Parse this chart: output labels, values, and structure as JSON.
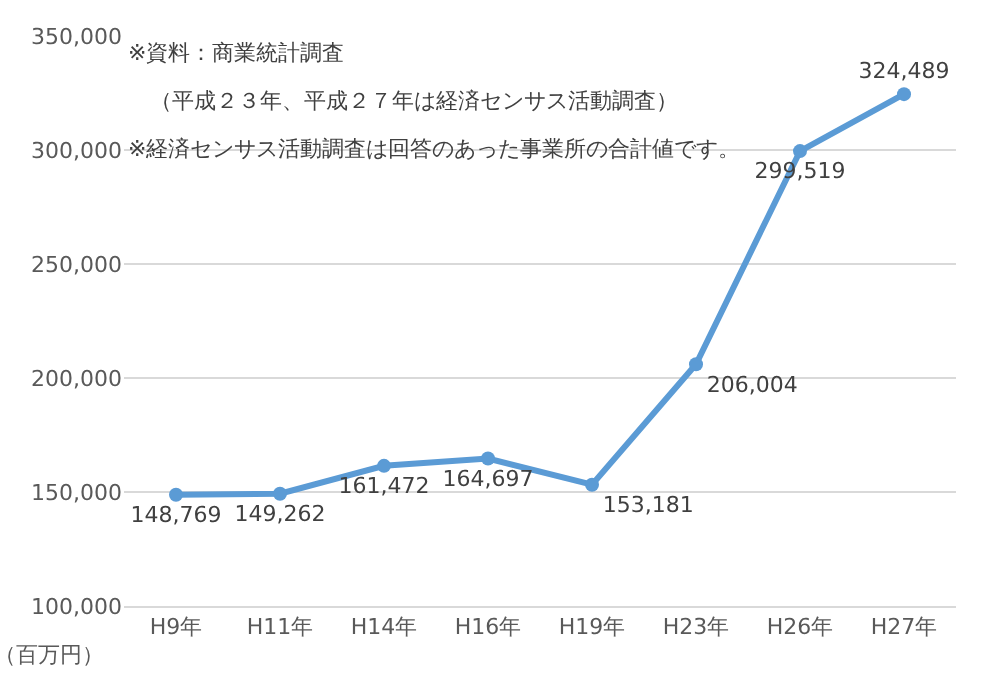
{
  "chart_data": {
    "type": "line",
    "categories": [
      "H9年",
      "H11年",
      "H14年",
      "H16年",
      "H19年",
      "H23年",
      "H26年",
      "H27年"
    ],
    "series": [
      {
        "color": "#5b9bd5",
        "values": [
          148769,
          149262,
          161472,
          164697,
          153181,
          206004,
          299519,
          324489
        ],
        "value_labels": [
          "148,769",
          "149,262",
          "161,472",
          "164,697",
          "153,181",
          "206,004",
          "299,519",
          "324,489"
        ]
      }
    ],
    "ylim": [
      100000,
      350000
    ],
    "yticks": [
      {
        "value": 100000,
        "label": "100,000"
      },
      {
        "value": 150000,
        "label": "150,000"
      },
      {
        "value": 200000,
        "label": "200,000"
      },
      {
        "value": 250000,
        "label": "250,000"
      },
      {
        "value": 300000,
        "label": "300,000"
      },
      {
        "value": 350000,
        "label": "350,000"
      }
    ],
    "ylabel": "（百万円）",
    "grid": "y",
    "marker": "circle",
    "line_style": "solid",
    "legend": false,
    "annotations": [
      "※資料：商業統計調査",
      "　（平成２３年、平成２７年は経済センサス活動調査）",
      "※経済センサス活動調査は回答のあった事業所の合計値です。"
    ]
  }
}
